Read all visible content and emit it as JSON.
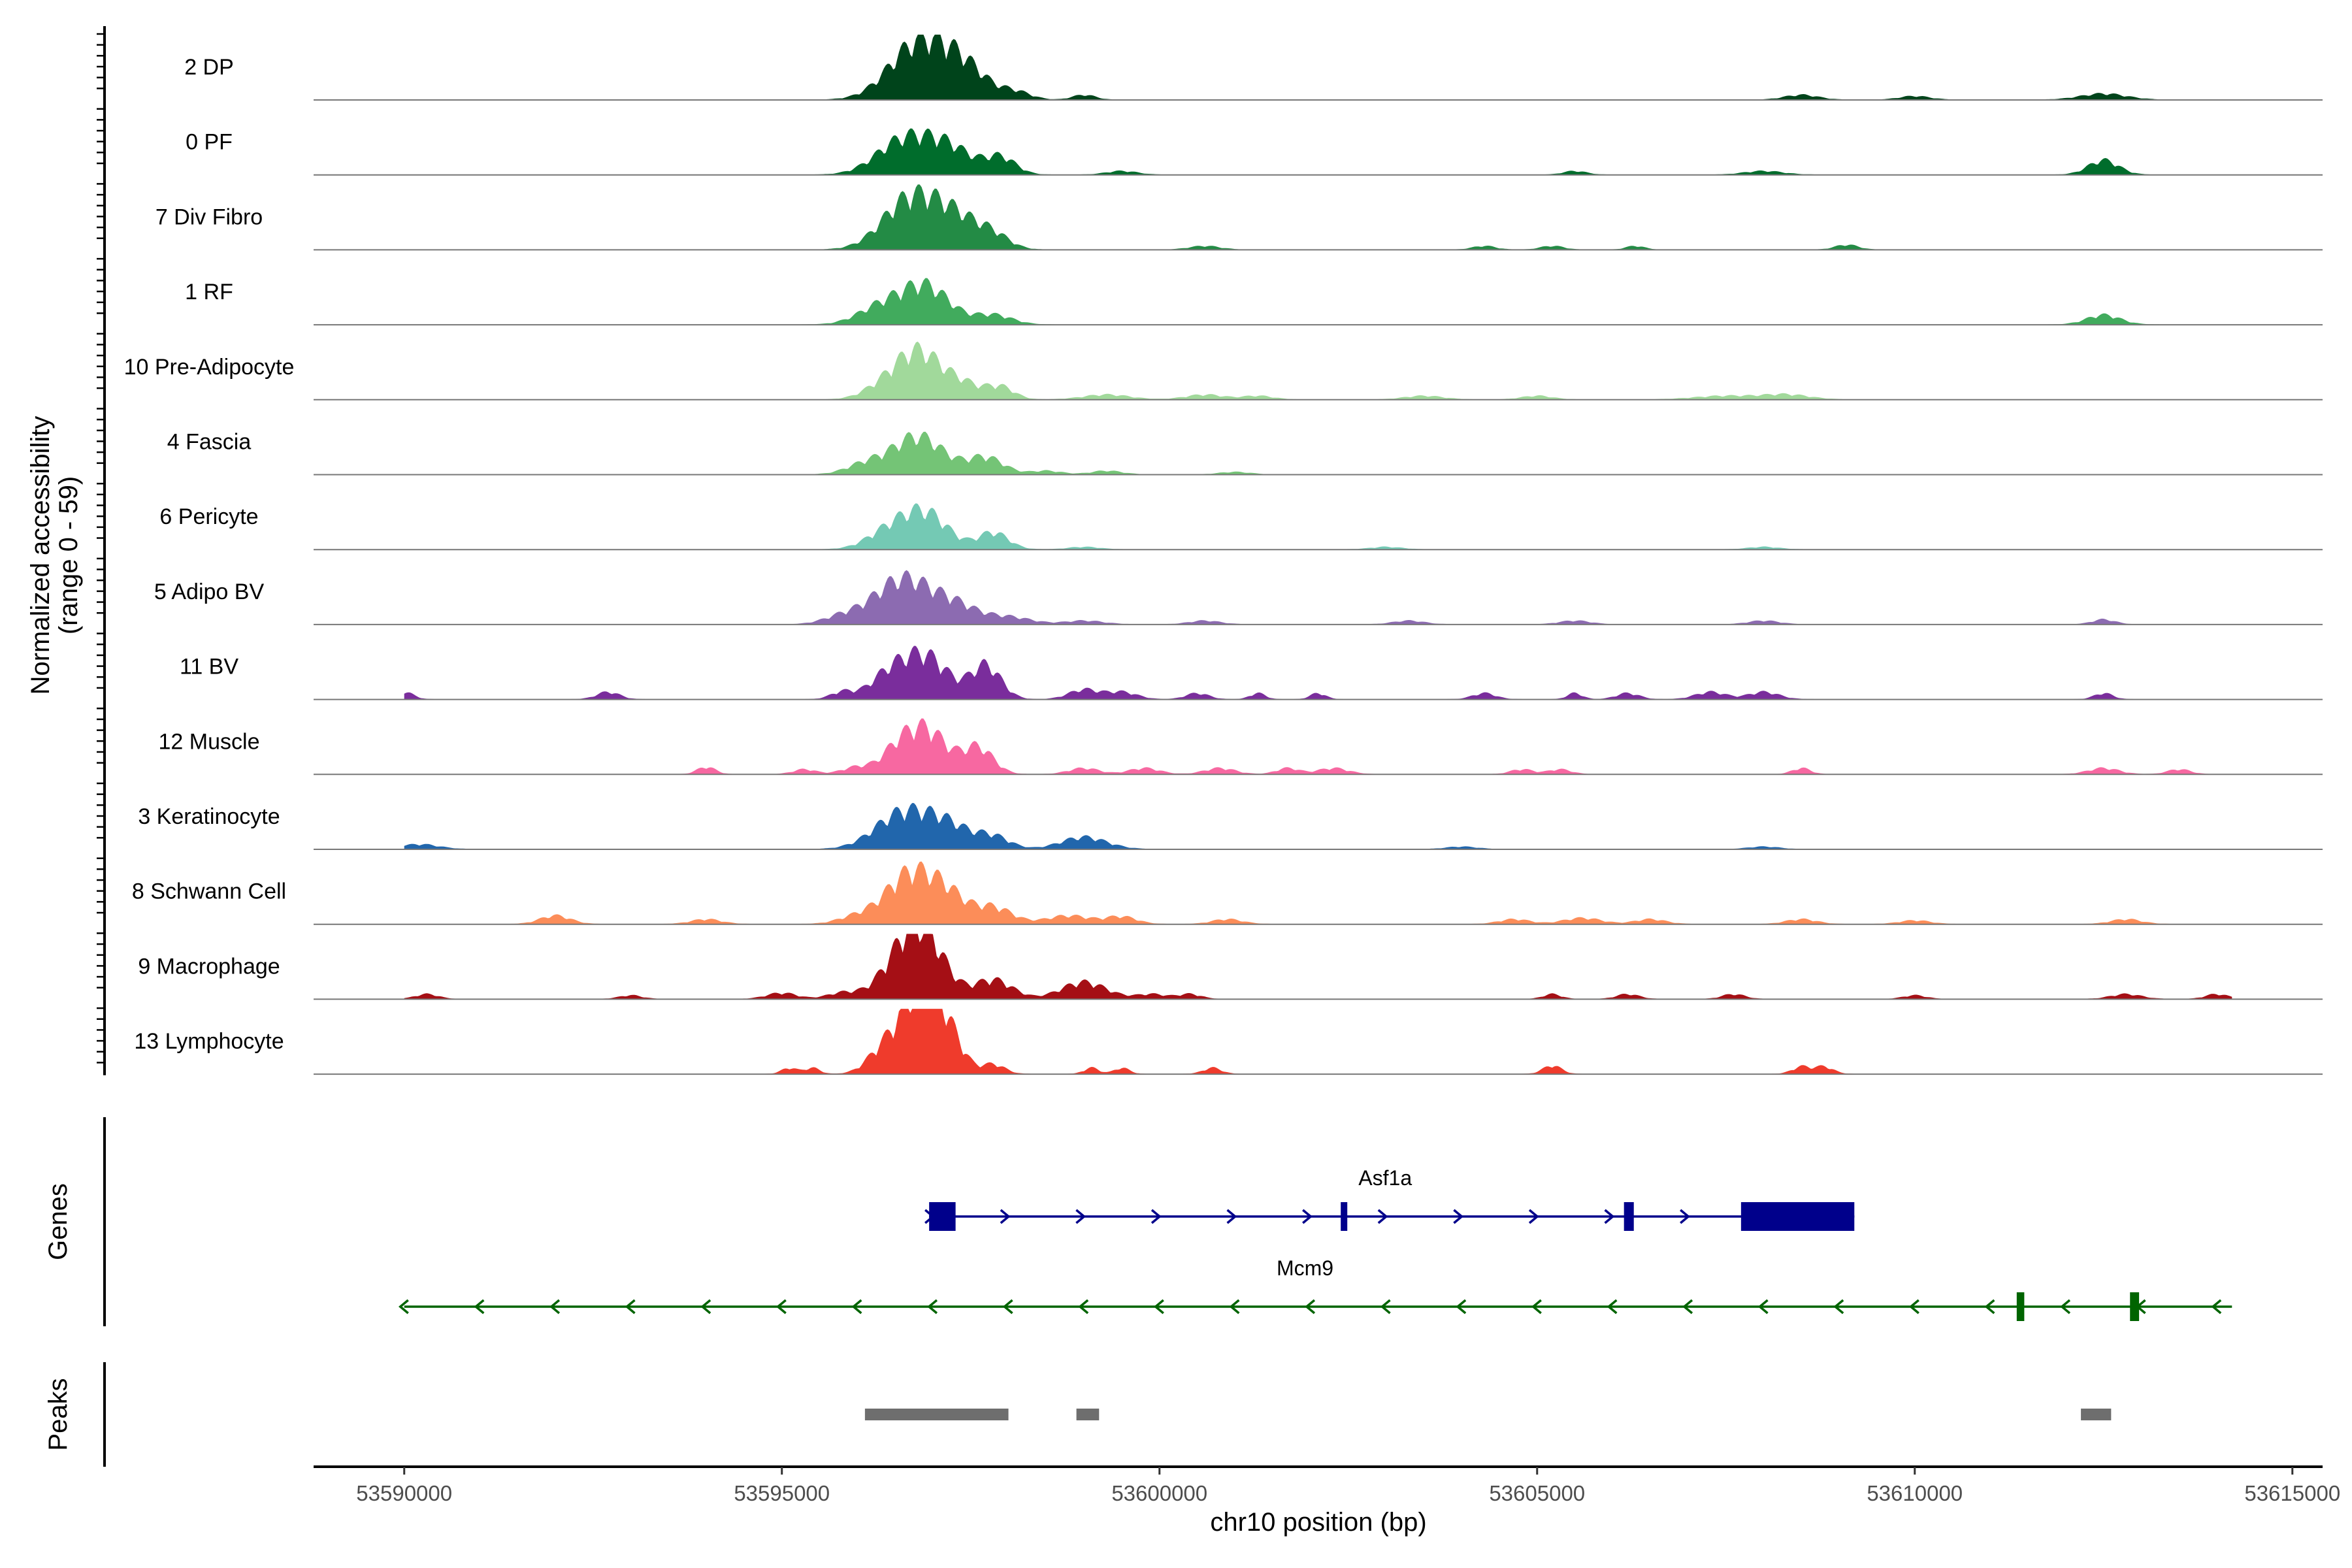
{
  "chart_data": {
    "type": "area",
    "ylabel_line1": "Normalized accessibility",
    "ylabel_line2": "(range 0 - 59)",
    "y_range": [
      0,
      59
    ],
    "xlabel": "chr10 position (bp)",
    "xlim": [
      53588800,
      53615400
    ],
    "x_ticks": [
      53590000,
      53595000,
      53600000,
      53605000,
      53610000,
      53615000
    ],
    "x_tick_labels": [
      "53590000",
      "53595000",
      "53600000",
      "53605000",
      "53610000",
      "53615000"
    ],
    "tracks": [
      {
        "name": "2 DP",
        "color": "#00441b",
        "peaks": [
          [
            53596800,
            46,
            380
          ],
          [
            53597400,
            25,
            320
          ],
          [
            53598100,
            6,
            200
          ],
          [
            53599000,
            4,
            150
          ],
          [
            53608500,
            4,
            220
          ],
          [
            53610000,
            3,
            200
          ],
          [
            53612500,
            5,
            300
          ]
        ]
      },
      {
        "name": "0 PF",
        "color": "#006d2c",
        "peaks": [
          [
            53596600,
            28,
            350
          ],
          [
            53597200,
            22,
            320
          ],
          [
            53597900,
            14,
            200
          ],
          [
            53599500,
            3,
            200
          ],
          [
            53605500,
            3,
            150
          ],
          [
            53608000,
            3,
            250
          ],
          [
            53612500,
            12,
            200
          ]
        ]
      },
      {
        "name": "7 Div Fibro",
        "color": "#238b45",
        "peaks": [
          [
            53596700,
            42,
            360
          ],
          [
            53597300,
            24,
            320
          ],
          [
            53597800,
            10,
            220
          ],
          [
            53600600,
            3,
            200
          ],
          [
            53604300,
            3,
            150
          ],
          [
            53605200,
            3,
            150
          ],
          [
            53606300,
            3,
            120
          ],
          [
            53609100,
            4,
            150
          ]
        ]
      },
      {
        "name": "1 RF",
        "color": "#41ab5d",
        "peaks": [
          [
            53596300,
            14,
            300
          ],
          [
            53596900,
            32,
            320
          ],
          [
            53597800,
            8,
            250
          ],
          [
            53612500,
            8,
            220
          ]
        ]
      },
      {
        "name": "10 Pre-Adipocyte",
        "color": "#a1d99b",
        "peaks": [
          [
            53596300,
            8,
            250
          ],
          [
            53596800,
            40,
            300
          ],
          [
            53597400,
            12,
            250
          ],
          [
            53597900,
            10,
            180
          ],
          [
            53599300,
            4,
            300
          ],
          [
            53600600,
            4,
            250
          ],
          [
            53601300,
            3,
            200
          ],
          [
            53603500,
            3,
            250
          ],
          [
            53605000,
            3,
            200
          ],
          [
            53607500,
            3,
            400
          ],
          [
            53608300,
            4,
            300
          ]
        ]
      },
      {
        "name": "4 Fascia",
        "color": "#74c476",
        "peaks": [
          [
            53596100,
            8,
            250
          ],
          [
            53596800,
            32,
            340
          ],
          [
            53597700,
            14,
            240
          ],
          [
            53598500,
            3,
            200
          ],
          [
            53599300,
            3,
            200
          ],
          [
            53601000,
            2,
            200
          ]
        ]
      },
      {
        "name": "6 Pericyte",
        "color": "#74c9b4",
        "peaks": [
          [
            53596400,
            14,
            280
          ],
          [
            53596900,
            30,
            300
          ],
          [
            53597800,
            14,
            200
          ],
          [
            53599000,
            2,
            200
          ],
          [
            53603000,
            2,
            200
          ],
          [
            53608000,
            2,
            200
          ]
        ]
      },
      {
        "name": "5 Adipo BV",
        "color": "#8c6bb1",
        "peaks": [
          [
            53595800,
            6,
            250
          ],
          [
            53596600,
            38,
            380
          ],
          [
            53597300,
            14,
            300
          ],
          [
            53598000,
            6,
            300
          ],
          [
            53599000,
            3,
            250
          ],
          [
            53600600,
            3,
            200
          ],
          [
            53603300,
            3,
            200
          ],
          [
            53605500,
            3,
            200
          ],
          [
            53608000,
            3,
            200
          ],
          [
            53612500,
            4,
            150
          ]
        ]
      },
      {
        "name": "11 BV",
        "color": "#7a2d9c",
        "peaks": [
          [
            53590000,
            6,
            120
          ],
          [
            53592700,
            6,
            150
          ],
          [
            53595800,
            6,
            150
          ],
          [
            53596400,
            18,
            250
          ],
          [
            53596900,
            36,
            300
          ],
          [
            53597700,
            28,
            200
          ],
          [
            53599000,
            8,
            200
          ],
          [
            53599500,
            6,
            200
          ],
          [
            53600500,
            5,
            150
          ],
          [
            53601300,
            5,
            100
          ],
          [
            53602100,
            5,
            100
          ],
          [
            53604300,
            5,
            150
          ],
          [
            53605500,
            5,
            100
          ],
          [
            53606200,
            5,
            150
          ],
          [
            53607300,
            6,
            200
          ],
          [
            53608000,
            6,
            200
          ],
          [
            53612500,
            5,
            120
          ]
        ]
      },
      {
        "name": "12 Muscle",
        "color": "#f768a1",
        "peaks": [
          [
            53594000,
            6,
            120
          ],
          [
            53595300,
            4,
            150
          ],
          [
            53596000,
            6,
            200
          ],
          [
            53596500,
            14,
            200
          ],
          [
            53596900,
            38,
            280
          ],
          [
            53597600,
            22,
            200
          ],
          [
            53599000,
            5,
            200
          ],
          [
            53599800,
            5,
            200
          ],
          [
            53600800,
            5,
            200
          ],
          [
            53601700,
            5,
            150
          ],
          [
            53602300,
            5,
            200
          ],
          [
            53604800,
            4,
            150
          ],
          [
            53605300,
            4,
            150
          ],
          [
            53608500,
            5,
            120
          ],
          [
            53612500,
            5,
            200
          ],
          [
            53613500,
            4,
            150
          ]
        ]
      },
      {
        "name": "3 Keratinocyte",
        "color": "#2166ac",
        "peaks": [
          [
            53590200,
            4,
            250
          ],
          [
            53596600,
            30,
            360
          ],
          [
            53597200,
            18,
            300
          ],
          [
            53597800,
            10,
            220
          ],
          [
            53599000,
            10,
            300
          ],
          [
            53604000,
            2,
            200
          ],
          [
            53608000,
            2,
            200
          ]
        ]
      },
      {
        "name": "8 Schwann Cell",
        "color": "#fc8d59",
        "peaks": [
          [
            53592000,
            7,
            200
          ],
          [
            53594000,
            4,
            200
          ],
          [
            53596000,
            6,
            250
          ],
          [
            53596700,
            42,
            320
          ],
          [
            53597200,
            20,
            250
          ],
          [
            53597800,
            14,
            250
          ],
          [
            53598800,
            7,
            300
          ],
          [
            53599500,
            6,
            200
          ],
          [
            53600900,
            4,
            200
          ],
          [
            53604700,
            4,
            200
          ],
          [
            53605600,
            5,
            250
          ],
          [
            53606500,
            4,
            200
          ],
          [
            53608500,
            4,
            200
          ],
          [
            53610000,
            3,
            200
          ],
          [
            53612800,
            4,
            200
          ]
        ]
      },
      {
        "name": "9 Macrophage",
        "color": "#a50f15",
        "peaks": [
          [
            53590300,
            4,
            150
          ],
          [
            53593000,
            3,
            150
          ],
          [
            53595000,
            5,
            200
          ],
          [
            53595800,
            5,
            200
          ],
          [
            53596600,
            30,
            300
          ],
          [
            53596900,
            42,
            280
          ],
          [
            53597800,
            16,
            250
          ],
          [
            53599000,
            14,
            300
          ],
          [
            53599900,
            4,
            200
          ],
          [
            53600400,
            4,
            150
          ],
          [
            53605200,
            4,
            120
          ],
          [
            53606200,
            4,
            150
          ],
          [
            53607600,
            4,
            150
          ],
          [
            53610000,
            3,
            150
          ],
          [
            53612800,
            4,
            200
          ],
          [
            53614000,
            4,
            150
          ]
        ]
      },
      {
        "name": "13 Lymphocyte",
        "color": "#ef3b2c",
        "peaks": [
          [
            53595100,
            5,
            100
          ],
          [
            53595400,
            5,
            100
          ],
          [
            53596300,
            14,
            200
          ],
          [
            53596700,
            40,
            250
          ],
          [
            53596900,
            40,
            200
          ],
          [
            53597200,
            32,
            200
          ],
          [
            53597800,
            8,
            150
          ],
          [
            53599100,
            5,
            100
          ],
          [
            53599500,
            5,
            100
          ],
          [
            53600700,
            5,
            120
          ],
          [
            53605200,
            7,
            120
          ],
          [
            53608500,
            6,
            120
          ],
          [
            53608800,
            6,
            120
          ]
        ]
      }
    ],
    "genes_label": "Genes",
    "genes": [
      {
        "name": "Asf1a",
        "strand": "+",
        "start": 53596950,
        "end": 53609200,
        "color": "#00008b",
        "exons": [
          [
            53596950,
            53597300
          ],
          [
            53602400,
            53602480
          ],
          [
            53606150,
            53606280
          ],
          [
            53607700,
            53609200
          ]
        ]
      },
      {
        "name": "Mcm9",
        "strand": "-",
        "start": 53590000,
        "end": 53614200,
        "color": "#006400",
        "exons": [
          [
            53611350,
            53611450
          ],
          [
            53612850,
            53612970
          ]
        ]
      }
    ],
    "peaks_label": "Peaks",
    "peak_regions": [
      [
        53596100,
        53598000
      ],
      [
        53598900,
        53599200
      ],
      [
        53612200,
        53612600
      ]
    ]
  }
}
